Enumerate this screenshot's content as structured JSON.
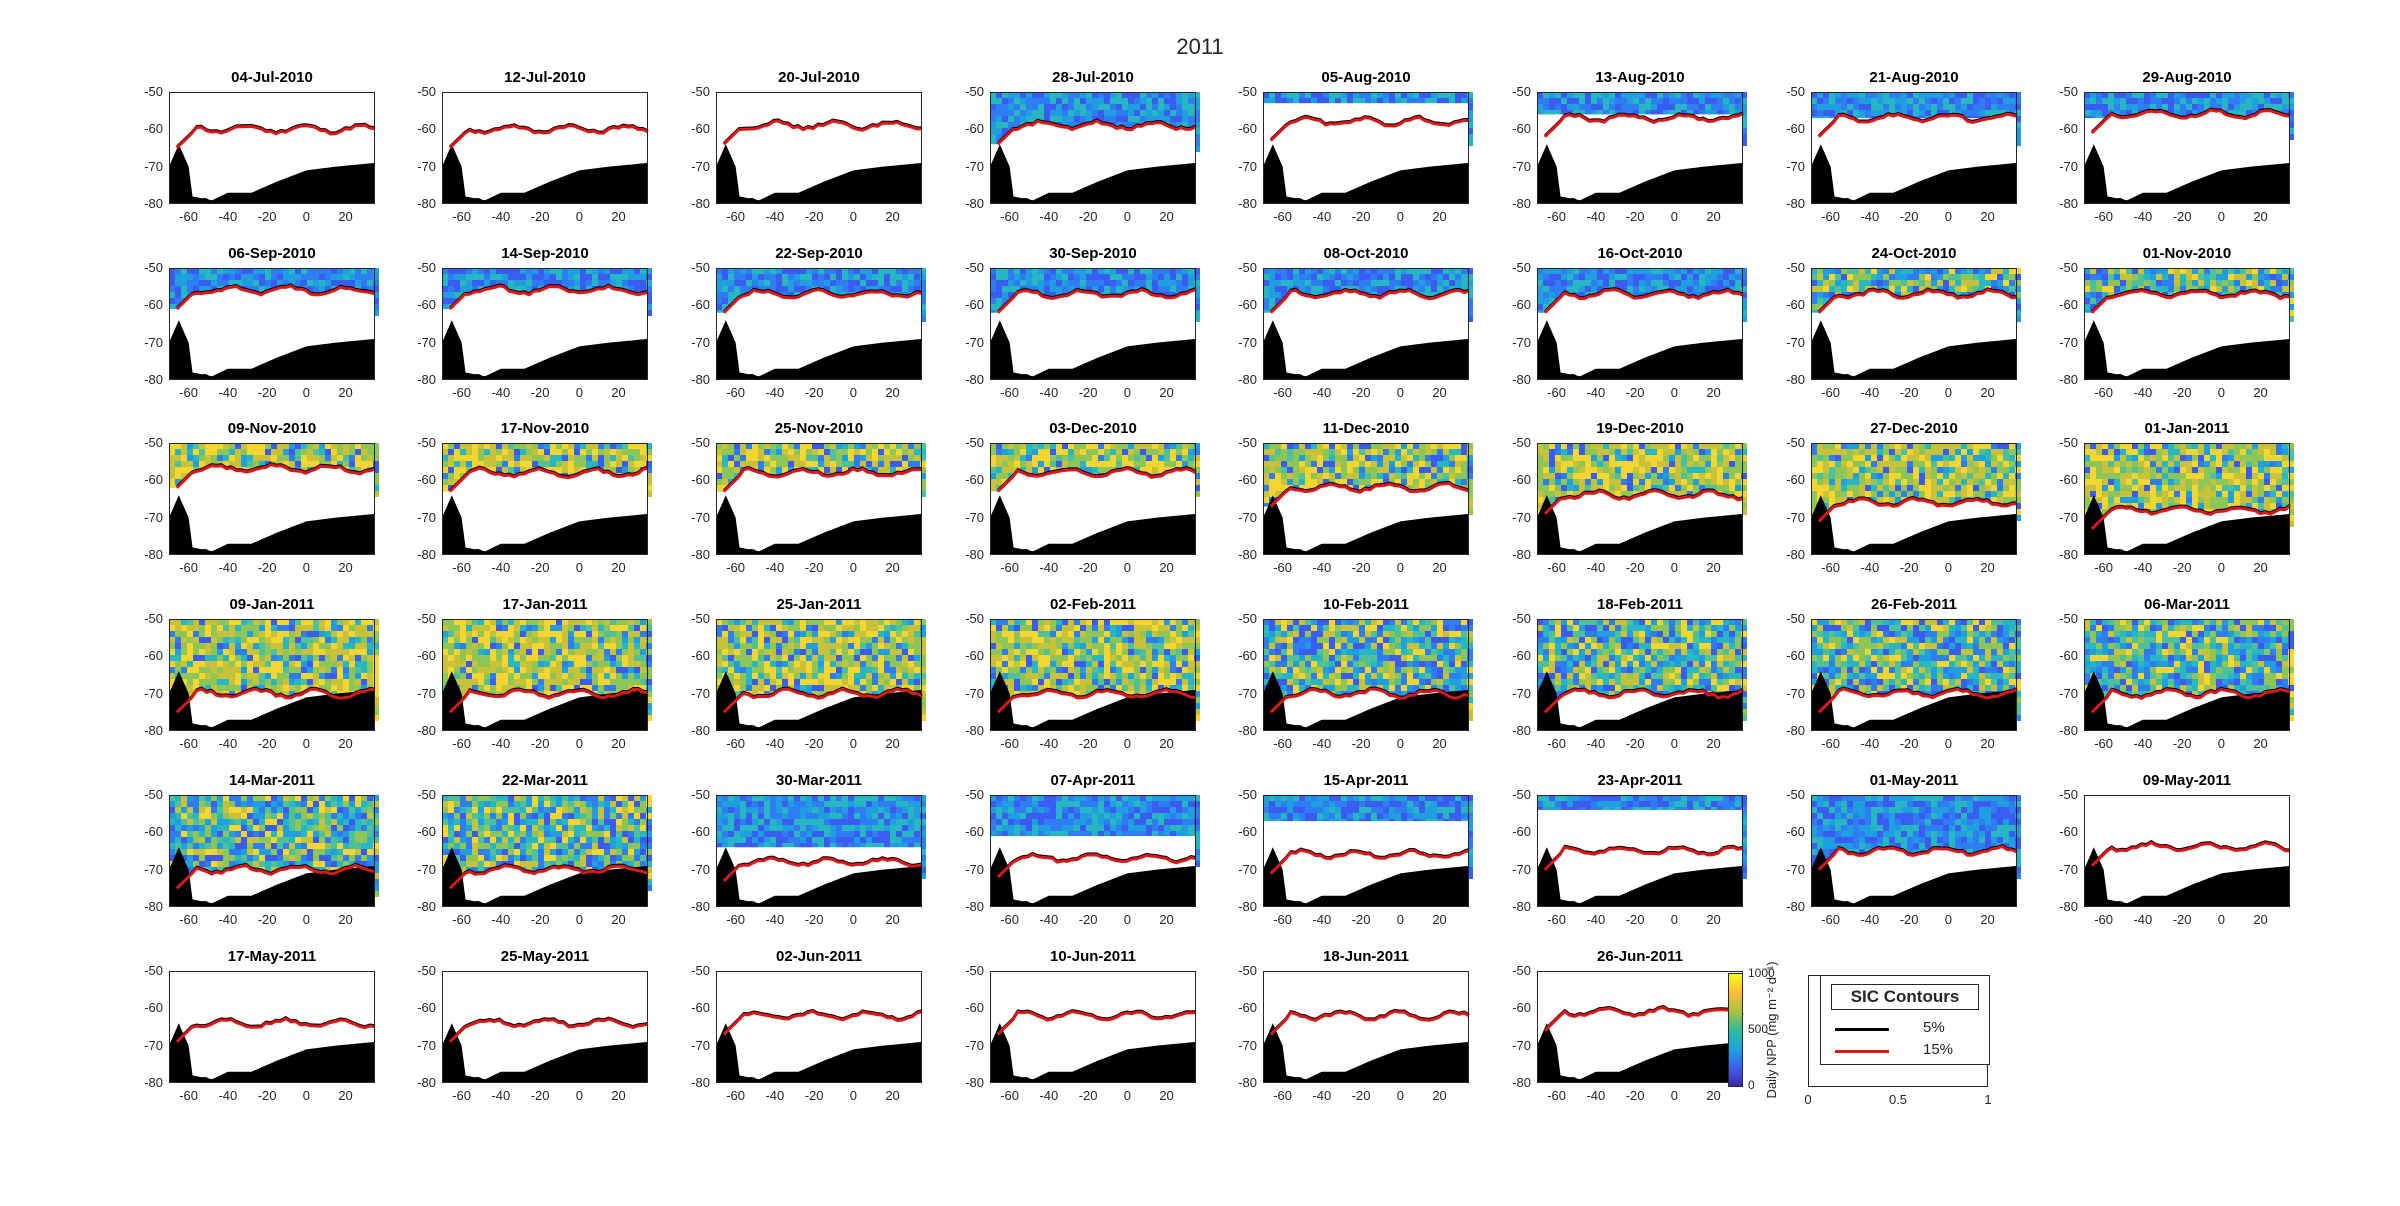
{
  "suptitle": "2011",
  "axes": {
    "yticks": [
      "-50",
      "-60",
      "-70",
      "-80"
    ],
    "xticks": [
      "-60",
      "-40",
      "-20",
      "0",
      "20"
    ]
  },
  "panels": [
    {
      "date": "04-Jul-2010",
      "ice_edge_15_lat": -60,
      "npp_band_top_lat": null
    },
    {
      "date": "12-Jul-2010",
      "ice_edge_15_lat": -60,
      "npp_band_top_lat": null
    },
    {
      "date": "20-Jul-2010",
      "ice_edge_15_lat": -59,
      "npp_band_top_lat": null
    },
    {
      "date": "28-Jul-2010",
      "ice_edge_15_lat": -59,
      "npp_band_top_lat": -50
    },
    {
      "date": "05-Aug-2010",
      "ice_edge_15_lat": -58,
      "npp_band_top_lat": -53
    },
    {
      "date": "13-Aug-2010",
      "ice_edge_15_lat": -57,
      "npp_band_top_lat": -56
    },
    {
      "date": "21-Aug-2010",
      "ice_edge_15_lat": -57,
      "npp_band_top_lat": -57
    },
    {
      "date": "29-Aug-2010",
      "ice_edge_15_lat": -56,
      "npp_band_top_lat": -57
    },
    {
      "date": "06-Sep-2010",
      "ice_edge_15_lat": -56,
      "npp_band_top_lat": -57
    },
    {
      "date": "14-Sep-2010",
      "ice_edge_15_lat": -56,
      "npp_band_top_lat": -57
    },
    {
      "date": "22-Sep-2010",
      "ice_edge_15_lat": -57,
      "npp_band_top_lat": -57
    },
    {
      "date": "30-Sep-2010",
      "ice_edge_15_lat": -57,
      "npp_band_top_lat": -57
    },
    {
      "date": "08-Oct-2010",
      "ice_edge_15_lat": -57,
      "npp_band_top_lat": -57
    },
    {
      "date": "16-Oct-2010",
      "ice_edge_15_lat": -57,
      "npp_band_top_lat": -57
    },
    {
      "date": "24-Oct-2010",
      "ice_edge_15_lat": -57,
      "npp_band_top_lat": -57
    },
    {
      "date": "01-Nov-2010",
      "ice_edge_15_lat": -57,
      "npp_band_top_lat": -57
    },
    {
      "date": "09-Nov-2010",
      "ice_edge_15_lat": -57,
      "npp_band_top_lat": -57
    },
    {
      "date": "17-Nov-2010",
      "ice_edge_15_lat": -58,
      "npp_band_top_lat": -58
    },
    {
      "date": "25-Nov-2010",
      "ice_edge_15_lat": -58,
      "npp_band_top_lat": -58
    },
    {
      "date": "03-Dec-2010",
      "ice_edge_15_lat": -58,
      "npp_band_top_lat": -58
    },
    {
      "date": "11-Dec-2010",
      "ice_edge_15_lat": -62,
      "npp_band_top_lat": -60
    },
    {
      "date": "19-Dec-2010",
      "ice_edge_15_lat": -64,
      "npp_band_top_lat": -60
    },
    {
      "date": "27-Dec-2010",
      "ice_edge_15_lat": -66,
      "npp_band_top_lat": -62
    },
    {
      "date": "01-Jan-2011",
      "ice_edge_15_lat": -68,
      "npp_band_top_lat": -64
    },
    {
      "date": "09-Jan-2011",
      "ice_edge_15_lat": -70,
      "npp_band_top_lat": -68
    },
    {
      "date": "17-Jan-2011",
      "ice_edge_15_lat": -70,
      "npp_band_top_lat": -69
    },
    {
      "date": "25-Jan-2011",
      "ice_edge_15_lat": -70,
      "npp_band_top_lat": -69
    },
    {
      "date": "02-Feb-2011",
      "ice_edge_15_lat": -70,
      "npp_band_top_lat": -69
    },
    {
      "date": "10-Feb-2011",
      "ice_edge_15_lat": -70,
      "npp_band_top_lat": -69
    },
    {
      "date": "18-Feb-2011",
      "ice_edge_15_lat": -70,
      "npp_band_top_lat": -69
    },
    {
      "date": "26-Feb-2011",
      "ice_edge_15_lat": -70,
      "npp_band_top_lat": -69
    },
    {
      "date": "06-Mar-2011",
      "ice_edge_15_lat": -70,
      "npp_band_top_lat": -69
    },
    {
      "date": "14-Mar-2011",
      "ice_edge_15_lat": -70,
      "npp_band_top_lat": -69
    },
    {
      "date": "22-Mar-2011",
      "ice_edge_15_lat": -70,
      "npp_band_top_lat": -67
    },
    {
      "date": "30-Mar-2011",
      "ice_edge_15_lat": -68,
      "npp_band_top_lat": -64
    },
    {
      "date": "07-Apr-2011",
      "ice_edge_15_lat": -67,
      "npp_band_top_lat": -61
    },
    {
      "date": "15-Apr-2011",
      "ice_edge_15_lat": -66,
      "npp_band_top_lat": -57
    },
    {
      "date": "23-Apr-2011",
      "ice_edge_15_lat": -65,
      "npp_band_top_lat": -54
    },
    {
      "date": "01-May-2011",
      "ice_edge_15_lat": -65,
      "npp_band_top_lat": -51
    },
    {
      "date": "09-May-2011",
      "ice_edge_15_lat": -64,
      "npp_band_top_lat": null
    },
    {
      "date": "17-May-2011",
      "ice_edge_15_lat": -64,
      "npp_band_top_lat": null
    },
    {
      "date": "25-May-2011",
      "ice_edge_15_lat": -64,
      "npp_band_top_lat": null
    },
    {
      "date": "02-Jun-2011",
      "ice_edge_15_lat": -62,
      "npp_band_top_lat": null
    },
    {
      "date": "10-Jun-2011",
      "ice_edge_15_lat": -62,
      "npp_band_top_lat": null
    },
    {
      "date": "18-Jun-2011",
      "ice_edge_15_lat": -62,
      "npp_band_top_lat": null
    },
    {
      "date": "26-Jun-2011",
      "ice_edge_15_lat": -61,
      "npp_band_top_lat": null
    }
  ],
  "colorbar": {
    "ticks": [
      "1000",
      "500",
      "0"
    ],
    "label": "Daily NPP (mg m⁻² d⁻¹)",
    "range": [
      0,
      1000
    ]
  },
  "legend": {
    "title": "SIC Contours",
    "entries": [
      {
        "label": "5%",
        "color": "#000000"
      },
      {
        "label": "15%",
        "color": "#d7191c"
      }
    ],
    "xticks": [
      "0",
      "0.5",
      "1"
    ]
  },
  "chart_data": {
    "type": "heatmap",
    "title": "2011",
    "xlim": [
      -70,
      35
    ],
    "ylim": [
      -80,
      -50
    ],
    "xlabel": "",
    "ylabel": "",
    "series": [
      {
        "name": "5%",
        "color": "#000000"
      },
      {
        "name": "15%",
        "color": "#d7191c"
      }
    ],
    "colorbar_range": [
      0,
      1000
    ]
  }
}
